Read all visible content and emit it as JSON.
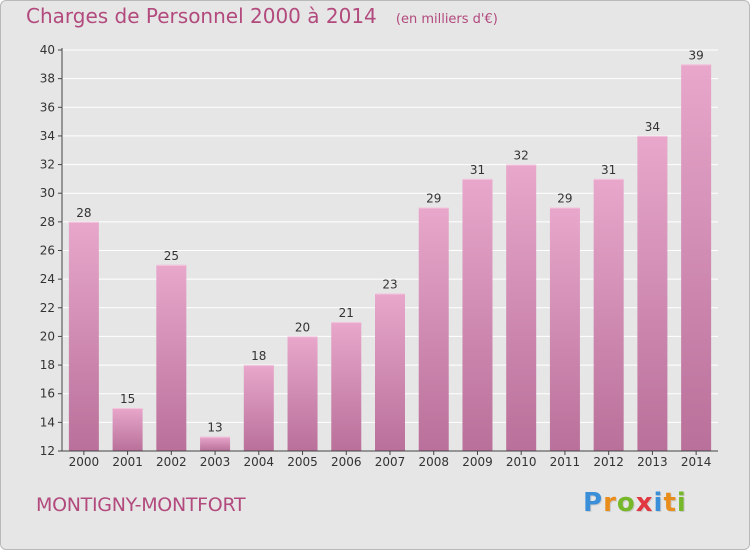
{
  "header": {
    "title": "Charges de Personnel 2000 à 2014",
    "unit": "(en milliers d'€)"
  },
  "footer": {
    "commune": "MONTIGNY-MONTFORT",
    "logo_letters": [
      "P",
      "r",
      "o",
      "x",
      "i",
      "t",
      "i"
    ],
    "logo_colors": [
      "#3b8fd9",
      "#e88d1c",
      "#76b82a",
      "#e2383f",
      "#3b8fd9",
      "#e88d1c",
      "#76b82a"
    ]
  },
  "colors": {
    "bar_top": "#e8a7cb",
    "bar_bottom": "#b9709a",
    "grid": "#ffffff",
    "axis": "#444444",
    "title": "#b24a7d"
  },
  "chart_data": {
    "type": "bar",
    "categories": [
      "2000",
      "2001",
      "2002",
      "2003",
      "2004",
      "2005",
      "2006",
      "2007",
      "2008",
      "2009",
      "2010",
      "2011",
      "2012",
      "2013",
      "2014"
    ],
    "values": [
      28,
      15,
      25,
      13,
      18,
      20,
      21,
      23,
      29,
      31,
      32,
      29,
      31,
      34,
      39
    ],
    "ylim": [
      12,
      40
    ],
    "yticks": [
      12,
      14,
      16,
      18,
      20,
      22,
      24,
      26,
      28,
      30,
      32,
      34,
      36,
      38,
      40
    ],
    "grid": true,
    "xlabel": "",
    "ylabel": ""
  }
}
